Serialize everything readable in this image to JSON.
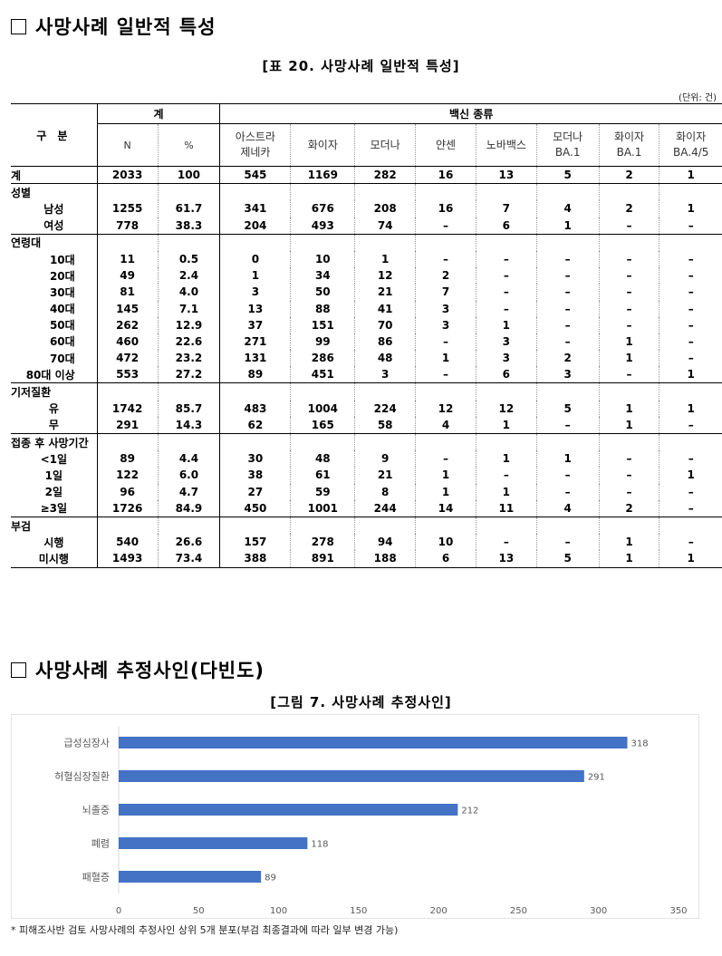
{
  "section1": {
    "title": "사망사례 일반적 특성"
  },
  "table_caption": "[표 20. 사망사례 일반적 특성]",
  "unit": "(단위: 건)",
  "table": {
    "gubun": "구 분",
    "group_total": "계",
    "group_vaccine": "백신 종류",
    "col_n": "N",
    "col_pct": "%",
    "vaccines": [
      {
        "l1": "아스트라",
        "l2": "제네카"
      },
      {
        "l1": "화이자",
        "l2": ""
      },
      {
        "l1": "모더나",
        "l2": ""
      },
      {
        "l1": "얀센",
        "l2": ""
      },
      {
        "l1": "노바백스",
        "l2": ""
      },
      {
        "l1": "모더나",
        "l2": "BA.1"
      },
      {
        "l1": "화이자",
        "l2": "BA.1"
      },
      {
        "l1": "화이자",
        "l2": "BA.4/5"
      }
    ],
    "rows": [
      {
        "label": "계",
        "kind": "total",
        "cells": [
          "2033",
          "100",
          "545",
          "1169",
          "282",
          "16",
          "13",
          "5",
          "2",
          "1"
        ]
      },
      {
        "label": "성별",
        "kind": "cat",
        "cells": []
      },
      {
        "label": "남성",
        "kind": "sub",
        "cells": [
          "1255",
          "61.7",
          "341",
          "676",
          "208",
          "16",
          "7",
          "4",
          "2",
          "1"
        ]
      },
      {
        "label": "여성",
        "kind": "sub",
        "cells": [
          "778",
          "38.3",
          "204",
          "493",
          "74",
          "–",
          "6",
          "1",
          "–",
          "–"
        ]
      },
      {
        "label": "연령대",
        "kind": "cat",
        "cells": []
      },
      {
        "label": "10대",
        "kind": "age",
        "cells": [
          "11",
          "0.5",
          "0",
          "10",
          "1",
          "–",
          "–",
          "–",
          "–",
          "–"
        ]
      },
      {
        "label": "20대",
        "kind": "age",
        "cells": [
          "49",
          "2.4",
          "1",
          "34",
          "12",
          "2",
          "–",
          "–",
          "–",
          "–"
        ]
      },
      {
        "label": "30대",
        "kind": "age",
        "cells": [
          "81",
          "4.0",
          "3",
          "50",
          "21",
          "7",
          "–",
          "–",
          "–",
          "–"
        ]
      },
      {
        "label": "40대",
        "kind": "age",
        "cells": [
          "145",
          "7.1",
          "13",
          "88",
          "41",
          "3",
          "–",
          "–",
          "–",
          "–"
        ]
      },
      {
        "label": "50대",
        "kind": "age",
        "cells": [
          "262",
          "12.9",
          "37",
          "151",
          "70",
          "3",
          "1",
          "–",
          "–",
          "–"
        ]
      },
      {
        "label": "60대",
        "kind": "age",
        "cells": [
          "460",
          "22.6",
          "271",
          "99",
          "86",
          "–",
          "3",
          "–",
          "1",
          "–"
        ]
      },
      {
        "label": "70대",
        "kind": "age",
        "cells": [
          "472",
          "23.2",
          "131",
          "286",
          "48",
          "1",
          "3",
          "2",
          "1",
          "–"
        ]
      },
      {
        "label": "80대 이상",
        "kind": "age",
        "cells": [
          "553",
          "27.2",
          "89",
          "451",
          "3",
          "–",
          "6",
          "3",
          "–",
          "1"
        ]
      },
      {
        "label": "기저질환",
        "kind": "cat",
        "cells": []
      },
      {
        "label": "유",
        "kind": "sub",
        "cells": [
          "1742",
          "85.7",
          "483",
          "1004",
          "224",
          "12",
          "12",
          "5",
          "1",
          "1"
        ]
      },
      {
        "label": "무",
        "kind": "sub",
        "cells": [
          "291",
          "14.3",
          "62",
          "165",
          "58",
          "4",
          "1",
          "–",
          "1",
          "–"
        ]
      },
      {
        "label": "접종 후 사망기간",
        "kind": "cat",
        "cells": []
      },
      {
        "label": "<1일",
        "kind": "sub",
        "cells": [
          "89",
          "4.4",
          "30",
          "48",
          "9",
          "–",
          "1",
          "1",
          "–",
          "–"
        ]
      },
      {
        "label": "1일",
        "kind": "sub",
        "cells": [
          "122",
          "6.0",
          "38",
          "61",
          "21",
          "1",
          "–",
          "–",
          "–",
          "1"
        ]
      },
      {
        "label": "2일",
        "kind": "sub",
        "cells": [
          "96",
          "4.7",
          "27",
          "59",
          "8",
          "1",
          "1",
          "–",
          "–",
          "–"
        ]
      },
      {
        "label": "≥3일",
        "kind": "sub",
        "cells": [
          "1726",
          "84.9",
          "450",
          "1001",
          "244",
          "14",
          "11",
          "4",
          "2",
          "–"
        ]
      },
      {
        "label": "부검",
        "kind": "cat",
        "cells": []
      },
      {
        "label": "시행",
        "kind": "sub",
        "cells": [
          "540",
          "26.6",
          "157",
          "278",
          "94",
          "10",
          "–",
          "–",
          "1",
          "–"
        ]
      },
      {
        "label": "미시행",
        "kind": "sub",
        "cells": [
          "1493",
          "73.4",
          "388",
          "891",
          "188",
          "6",
          "13",
          "5",
          "1",
          "1"
        ]
      }
    ]
  },
  "section2": {
    "title": "사망사례 추정사인(다빈도)"
  },
  "figure_caption": "[그림 7. 사망사례 추정사인]",
  "chart_data": {
    "type": "bar",
    "orientation": "horizontal",
    "categories": [
      "급성심장사",
      "허혈심장질환",
      "뇌졸중",
      "폐렴",
      "패혈증"
    ],
    "values": [
      318,
      291,
      212,
      118,
      89
    ],
    "xlim": [
      0,
      350
    ],
    "xticks": [
      "0",
      "50",
      "100",
      "150",
      "200",
      "250",
      "300",
      "350"
    ],
    "bar_color": "#4472c4",
    "title": "",
    "xlabel": "",
    "ylabel": ""
  },
  "footnote": "* 피해조사반 검토 사망사례의 추정사인 상위 5개 분포(부검 최종결과에 따라 일부 변경 가능)"
}
